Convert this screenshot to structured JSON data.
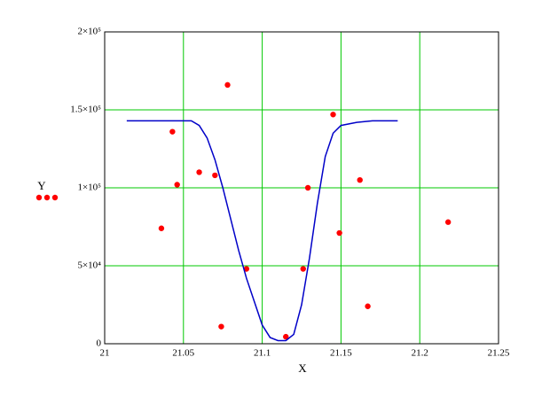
{
  "chart_data": {
    "type": "scatter",
    "xlabel": "X",
    "ylabel": "Y",
    "xlim": [
      21,
      21.25
    ],
    "xticks": [
      21,
      21.05,
      21.1,
      21.15,
      21.2,
      21.25
    ],
    "ylim": [
      0,
      200000
    ],
    "yticks": [
      0,
      {
        "value": 50000,
        "label": "5×10⁴"
      },
      {
        "value": 100000,
        "label": "1×10⁵"
      },
      {
        "value": 150000,
        "label": "1.5×10⁵"
      },
      {
        "value": 200000,
        "label": "2×10⁵"
      }
    ],
    "grid": true,
    "grid_color": "#00c800",
    "series": [
      {
        "type": "scatter",
        "color": "#ff0000",
        "x": [
          21.036,
          21.043,
          21.046,
          21.06,
          21.07,
          21.074,
          21.078,
          21.09,
          21.115,
          21.126,
          21.129,
          21.145,
          21.149,
          21.162,
          21.167,
          21.218
        ],
        "values": [
          74000,
          136000,
          102000,
          110000,
          108000,
          11000,
          166000,
          48000,
          4500,
          48000,
          100000,
          147000,
          71000,
          105000,
          24000,
          78000
        ]
      },
      {
        "type": "line",
        "color": "#0000c8",
        "x": [
          21.014,
          21.055,
          21.06,
          21.065,
          21.07,
          21.075,
          21.08,
          21.085,
          21.09,
          21.095,
          21.1,
          21.105,
          21.11,
          21.115,
          21.12,
          21.125,
          21.13,
          21.135,
          21.14,
          21.145,
          21.15,
          21.16,
          21.17,
          21.186
        ],
        "values": [
          143000,
          143000,
          140000,
          132000,
          118000,
          100000,
          80000,
          60000,
          42000,
          27000,
          12000,
          4000,
          2000,
          2000,
          6000,
          25000,
          55000,
          90000,
          120000,
          135000,
          140000,
          142000,
          143000,
          143000
        ]
      }
    ]
  }
}
